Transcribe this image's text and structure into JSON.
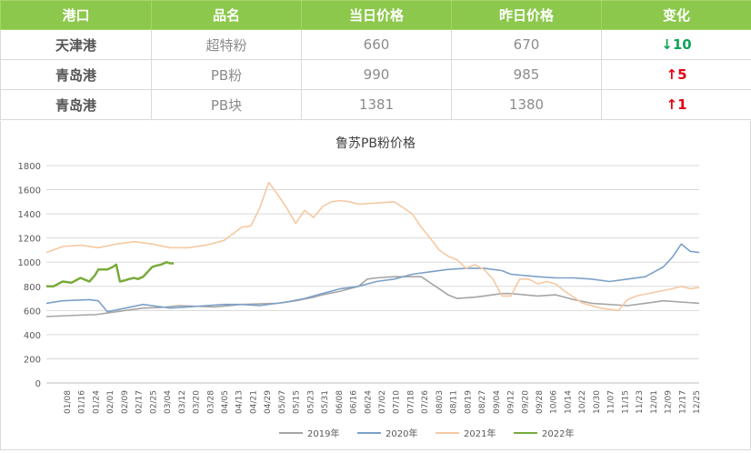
{
  "table": {
    "headers": [
      "港口",
      "品名",
      "当日价格",
      "昨日价格",
      "变化"
    ],
    "rows": [
      {
        "port": "天津港",
        "product": "超特粉",
        "today": "660",
        "yesterday": "670",
        "arrow": "↓",
        "change": "10",
        "dir": "down"
      },
      {
        "port": "青岛港",
        "product": "PB粉",
        "today": "990",
        "yesterday": "985",
        "arrow": "↑",
        "change": "5",
        "dir": "up"
      },
      {
        "port": "青岛港",
        "product": "PB块",
        "today": "1381",
        "yesterday": "1380",
        "arrow": "↑",
        "change": "1",
        "dir": "up"
      }
    ]
  },
  "colors": {
    "header_bg": "#8cc84b",
    "down": "#11a35a",
    "up": "#e60012"
  },
  "chart_data": {
    "type": "line",
    "title": "鲁苏PB粉价格",
    "xlabel": "",
    "ylabel": "",
    "ylim": [
      0,
      1800
    ],
    "yticks": [
      0,
      200,
      400,
      600,
      800,
      1000,
      1200,
      1400,
      1600,
      1800
    ],
    "xlim": [
      1,
      365
    ],
    "x_unit": "day of year",
    "xticklabels": [
      "01/08",
      "01/16",
      "01/24",
      "02/01",
      "02/09",
      "02/17",
      "02/25",
      "03/04",
      "03/12",
      "03/20",
      "03/28",
      "04/05",
      "04/13",
      "04/21",
      "04/29",
      "05/07",
      "05/15",
      "05/23",
      "05/31",
      "06/08",
      "06/16",
      "06/24",
      "07/02",
      "07/10",
      "07/18",
      "07/26",
      "08/03",
      "08/11",
      "08/19",
      "08/27",
      "09/04",
      "09/12",
      "09/20",
      "09/28",
      "10/06",
      "10/14",
      "10/22",
      "10/30",
      "11/07",
      "11/15",
      "11/23",
      "12/01",
      "12/09",
      "12/17",
      "12/25"
    ],
    "grid": true,
    "legend_position": "bottom",
    "series": [
      {
        "name": "2019年",
        "color": "#a5a5a5",
        "x": [
          1,
          25,
          28,
          45,
          55,
          65,
          75,
          95,
          110,
          130,
          140,
          150,
          155,
          165,
          175,
          180,
          185,
          195,
          210,
          215,
          225,
          230,
          240,
          245,
          255,
          260,
          275,
          285,
          295,
          305,
          325,
          335,
          345,
          365
        ],
        "values": [
          550,
          565,
          565,
          600,
          620,
          625,
          640,
          630,
          650,
          660,
          680,
          710,
          730,
          760,
          800,
          860,
          870,
          880,
          880,
          830,
          730,
          700,
          710,
          720,
          740,
          740,
          720,
          730,
          690,
          660,
          640,
          660,
          680,
          660
        ]
      },
      {
        "name": "2020年",
        "color": "#7da0c8",
        "x": [
          1,
          10,
          25,
          30,
          35,
          45,
          55,
          60,
          70,
          80,
          90,
          100,
          110,
          120,
          135,
          145,
          155,
          165,
          175,
          185,
          195,
          205,
          215,
          225,
          235,
          245,
          255,
          260,
          275,
          285,
          295,
          305,
          315,
          325,
          335,
          345,
          350,
          355,
          360,
          365
        ],
        "values": [
          660,
          680,
          690,
          680,
          590,
          620,
          650,
          640,
          620,
          630,
          640,
          650,
          650,
          640,
          670,
          700,
          740,
          780,
          800,
          840,
          860,
          900,
          920,
          940,
          950,
          950,
          930,
          900,
          880,
          870,
          870,
          860,
          840,
          860,
          880,
          960,
          1040,
          1150,
          1090,
          1080
        ]
      },
      {
        "name": "2021年",
        "color": "#f5c9a3",
        "x": [
          1,
          10,
          20,
          30,
          40,
          50,
          60,
          70,
          80,
          90,
          100,
          110,
          115,
          120,
          125,
          130,
          135,
          140,
          145,
          150,
          155,
          160,
          165,
          170,
          175,
          185,
          195,
          205,
          210,
          215,
          220,
          225,
          230,
          235,
          240,
          245,
          250,
          255,
          260,
          265,
          270,
          275,
          280,
          285,
          290,
          300,
          310,
          320,
          325,
          330,
          340,
          350,
          355,
          360,
          365
        ],
        "values": [
          1080,
          1130,
          1140,
          1120,
          1150,
          1170,
          1150,
          1120,
          1120,
          1140,
          1180,
          1290,
          1300,
          1450,
          1660,
          1560,
          1450,
          1320,
          1430,
          1370,
          1460,
          1500,
          1510,
          1500,
          1480,
          1490,
          1500,
          1400,
          1290,
          1200,
          1100,
          1050,
          1020,
          950,
          980,
          940,
          860,
          720,
          720,
          860,
          860,
          820,
          840,
          820,
          760,
          660,
          620,
          600,
          690,
          720,
          750,
          780,
          800,
          780,
          790
        ]
      },
      {
        "name": "2022年",
        "color": "#78ab3a",
        "x": [
          1,
          5,
          10,
          15,
          20,
          25,
          28,
          30,
          35,
          38,
          40,
          42,
          45,
          47,
          50,
          52,
          55,
          60,
          62,
          65,
          68,
          70,
          72
        ],
        "values": [
          800,
          800,
          840,
          830,
          870,
          840,
          890,
          940,
          940,
          960,
          980,
          840,
          850,
          860,
          870,
          860,
          880,
          960,
          970,
          980,
          1000,
          990,
          990
        ]
      }
    ]
  }
}
